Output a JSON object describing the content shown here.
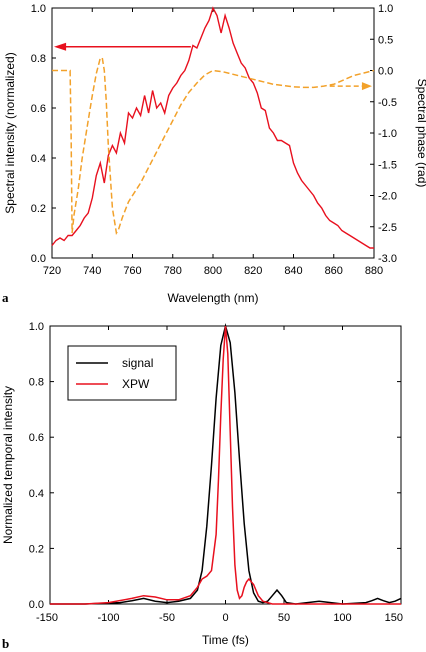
{
  "chart_data": [
    {
      "panel_label": "a",
      "type": "line",
      "xlabel": "Wavelength (nm)",
      "ylabel": "Spectral intensity (normalized)",
      "y2label": "Spectral phase (rad)",
      "xlim": [
        720,
        880
      ],
      "ylim": [
        0,
        1.0
      ],
      "y2lim": [
        -3.0,
        1.0
      ],
      "xticks": [
        "720",
        "740",
        "760",
        "780",
        "800",
        "820",
        "840",
        "860",
        "880"
      ],
      "yticks": [
        "0.0",
        "0.2",
        "0.4",
        "0.6",
        "0.8",
        "1.0"
      ],
      "y2ticks": [
        "-3.0",
        "-2.5",
        "-2.0",
        "-1.5",
        "-1.0",
        "-0.5",
        "0.0",
        "0.5",
        "1.0"
      ],
      "grid": false,
      "colors": {
        "intensity": "#e8101e",
        "phase": "#f2a12a"
      },
      "series": [
        {
          "axis": "left",
          "style": "solid",
          "x": [
            720,
            722,
            724,
            726,
            728,
            730,
            732,
            734,
            736,
            738,
            740,
            742,
            744,
            746,
            748,
            750,
            752,
            754,
            756,
            758,
            760,
            762,
            764,
            766,
            768,
            770,
            772,
            774,
            776,
            778,
            780,
            782,
            784,
            786,
            788,
            790,
            792,
            794,
            796,
            798,
            800,
            802,
            804,
            806,
            808,
            810,
            812,
            814,
            816,
            818,
            820,
            822,
            824,
            826,
            828,
            830,
            832,
            834,
            836,
            838,
            840,
            842,
            844,
            846,
            848,
            850,
            852,
            854,
            856,
            858,
            860,
            862,
            864,
            866,
            868,
            870,
            872,
            874,
            876,
            878,
            880
          ],
          "y": [
            0.05,
            0.07,
            0.08,
            0.07,
            0.09,
            0.09,
            0.11,
            0.13,
            0.16,
            0.18,
            0.24,
            0.33,
            0.38,
            0.3,
            0.41,
            0.45,
            0.42,
            0.5,
            0.46,
            0.58,
            0.56,
            0.6,
            0.57,
            0.65,
            0.58,
            0.67,
            0.6,
            0.62,
            0.58,
            0.65,
            0.68,
            0.7,
            0.73,
            0.75,
            0.79,
            0.85,
            0.84,
            0.88,
            0.92,
            0.95,
            1.0,
            0.97,
            0.9,
            0.97,
            0.92,
            0.86,
            0.82,
            0.78,
            0.76,
            0.72,
            0.7,
            0.66,
            0.6,
            0.59,
            0.52,
            0.5,
            0.47,
            0.47,
            0.46,
            0.45,
            0.38,
            0.34,
            0.31,
            0.29,
            0.27,
            0.25,
            0.22,
            0.2,
            0.17,
            0.15,
            0.14,
            0.13,
            0.11,
            0.1,
            0.09,
            0.08,
            0.07,
            0.06,
            0.05,
            0.04,
            0.04
          ]
        },
        {
          "axis": "right",
          "style": "dashed",
          "x": [
            720,
            724,
            728,
            729,
            729.5,
            730,
            731,
            733,
            735,
            738,
            740,
            742,
            744,
            745,
            746,
            747,
            748,
            750,
            752,
            753,
            755,
            758,
            760,
            764,
            768,
            772,
            776,
            780,
            784,
            788,
            792,
            796,
            800,
            805,
            810,
            815,
            820,
            825,
            830,
            835,
            840,
            845,
            850,
            855,
            860,
            865,
            870,
            875,
            880
          ],
          "y": [
            0.0,
            0.0,
            0.0,
            0.0,
            -1.0,
            -2.6,
            -2.3,
            -1.9,
            -1.4,
            -0.8,
            -0.4,
            -0.05,
            0.2,
            0.2,
            0.0,
            -0.5,
            -1.2,
            -2.2,
            -2.6,
            -2.55,
            -2.35,
            -2.1,
            -2.0,
            -1.8,
            -1.55,
            -1.3,
            -1.05,
            -0.8,
            -0.55,
            -0.35,
            -0.2,
            -0.07,
            0.0,
            -0.02,
            -0.06,
            -0.1,
            -0.14,
            -0.18,
            -0.22,
            -0.24,
            -0.26,
            -0.27,
            -0.27,
            -0.25,
            -0.22,
            -0.15,
            -0.08,
            -0.04,
            0.0
          ]
        }
      ]
    },
    {
      "panel_label": "b",
      "type": "line",
      "xlabel": "Time (fs)",
      "ylabel": "Normalized temporal intensity",
      "xlim": [
        -150,
        150
      ],
      "ylim": [
        0,
        1.0
      ],
      "xticks": [
        "-150",
        "-100",
        "-50",
        "0",
        "50",
        "100",
        "150"
      ],
      "yticks": [
        "0.0",
        "0.2",
        "0.4",
        "0.6",
        "0.8",
        "1.0"
      ],
      "grid": false,
      "legend": {
        "position": "top-left"
      },
      "series": [
        {
          "name": "signal",
          "color": "#000000",
          "x": [
            -150,
            -120,
            -90,
            -80,
            -70,
            -60,
            -50,
            -40,
            -30,
            -24,
            -20,
            -16,
            -12,
            -8,
            -4,
            0,
            4,
            8,
            12,
            16,
            20,
            24,
            28,
            32,
            36,
            40,
            44,
            48,
            52,
            60,
            70,
            80,
            100,
            120,
            125,
            130,
            135,
            140,
            145,
            150
          ],
          "y": [
            0.0,
            0.0,
            0.005,
            0.012,
            0.02,
            0.01,
            0.005,
            0.01,
            0.02,
            0.05,
            0.12,
            0.28,
            0.5,
            0.74,
            0.93,
            1.0,
            0.94,
            0.76,
            0.52,
            0.29,
            0.12,
            0.04,
            0.01,
            0.005,
            0.01,
            0.03,
            0.05,
            0.03,
            0.005,
            0.0,
            0.005,
            0.01,
            0.0,
            0.005,
            0.012,
            0.02,
            0.012,
            0.005,
            0.01,
            0.02
          ]
        },
        {
          "name": "XPW",
          "color": "#e8101e",
          "x": [
            -150,
            -120,
            -100,
            -80,
            -70,
            -60,
            -50,
            -40,
            -30,
            -24,
            -20,
            -16,
            -12,
            -8,
            -6,
            -4,
            -2,
            0,
            2,
            4,
            6,
            8,
            10,
            12,
            14,
            16,
            18,
            20,
            24,
            28,
            32,
            40,
            60,
            80,
            100,
            120,
            150
          ],
          "y": [
            0.0,
            0.0,
            0.005,
            0.02,
            0.03,
            0.025,
            0.015,
            0.015,
            0.03,
            0.06,
            0.09,
            0.1,
            0.12,
            0.25,
            0.45,
            0.68,
            0.88,
            1.0,
            0.9,
            0.62,
            0.35,
            0.14,
            0.05,
            0.02,
            0.03,
            0.06,
            0.08,
            0.09,
            0.07,
            0.03,
            0.01,
            0.0,
            0.0,
            0.0,
            0.0,
            0.0,
            0.0
          ]
        }
      ]
    }
  ]
}
